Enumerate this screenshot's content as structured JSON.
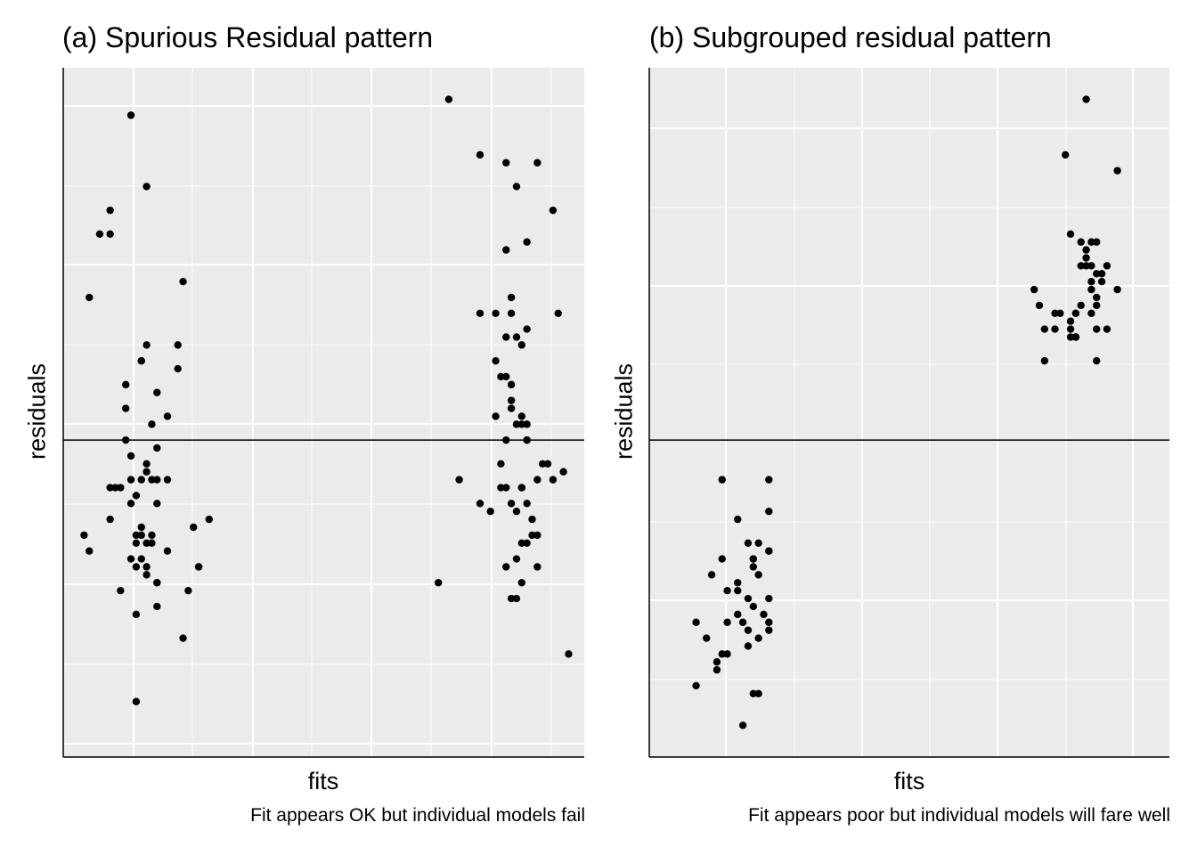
{
  "chart_data": [
    {
      "type": "scatter",
      "title": "(a) Spurious Residual pattern",
      "xlabel": "fits",
      "ylabel": "residuals",
      "caption": "Fit appears OK but individual models fail",
      "xlim": [
        0.0,
        10.0
      ],
      "ylim": [
        -4.0,
        4.7
      ],
      "grid": true,
      "hline": 0,
      "background": "#ebebeb",
      "point_color": "#000000",
      "series": [
        {
          "x": [
            1.3,
            0.5,
            0.9,
            1.8,
            0.9,
            2.3,
            1.6,
            1.6,
            0.7,
            1.5,
            2.2,
            2.2,
            1.2,
            1.5,
            1.2,
            1.8,
            1.3,
            1.6,
            2.0,
            1.7,
            1.2,
            1.0,
            0.9,
            1.8,
            1.7,
            2.0,
            1.5,
            1.3,
            1.1,
            1.4,
            1.6,
            1.8,
            1.7,
            1.5,
            1.7,
            1.5,
            1.6,
            1.4,
            2.5,
            2.6,
            1.6,
            2.0,
            1.5,
            1.4,
            0.9,
            1.6,
            1.3,
            1.8,
            1.8,
            2.3,
            2.6,
            1.4,
            1.8,
            2.4,
            0.4,
            0.5,
            1.1,
            1.4,
            1.3,
            1.4,
            2.8
          ],
          "y": [
            4.1,
            1.8,
            2.9,
            0.6,
            2.6,
            2.0,
            3.2,
            1.2,
            2.6,
            1.0,
            1.2,
            0.9,
            0.7,
            1.0,
            0.4,
            -0.1,
            -0.8,
            -0.3,
            0.3,
            0.2,
            0.0,
            -0.6,
            -0.6,
            -0.5,
            -0.5,
            -0.5,
            -0.5,
            -0.5,
            -0.6,
            -0.7,
            -0.4,
            -0.8,
            -1.2,
            -1.1,
            -1.3,
            -1.2,
            -1.3,
            -1.3,
            -1.1,
            -1.6,
            -1.6,
            -1.4,
            -1.5,
            -1.6,
            -1.0,
            -1.7,
            -1.5,
            -1.8,
            -1.8,
            -2.5,
            -1.6,
            -1.2,
            -2.1,
            -1.9,
            -1.2,
            -1.4,
            -1.9,
            -3.3,
            -0.2,
            -2.2,
            -1.0
          ]
        },
        {
          "x": [
            7.4,
            8.0,
            8.5,
            8.7,
            8.5,
            8.9,
            8.6,
            8.3,
            8.0,
            8.6,
            9.5,
            8.9,
            8.5,
            8.7,
            8.8,
            8.5,
            8.6,
            8.6,
            8.4,
            8.3,
            8.6,
            8.3,
            8.8,
            8.5,
            8.9,
            8.7,
            8.8,
            8.9,
            8.9,
            9.2,
            9.6,
            9.3,
            9.1,
            9.4,
            8.8,
            8.6,
            8.7,
            9.0,
            8.7,
            9.1,
            8.5,
            8.8,
            8.9,
            7.6,
            8.5,
            7.2,
            8.7,
            8.6,
            9.1,
            8.4,
            8.8,
            9.0,
            9.7,
            9.4,
            9.1,
            8.4,
            8.0,
            8.9,
            8.8,
            8.2
          ],
          "y": [
            4.3,
            3.6,
            3.5,
            3.2,
            2.4,
            2.5,
            1.8,
            1.6,
            1.6,
            1.6,
            1.6,
            1.4,
            1.3,
            1.3,
            1.2,
            0.8,
            0.7,
            0.5,
            0.8,
            1.0,
            0.4,
            0.3,
            0.3,
            0.0,
            0.2,
            0.2,
            0.2,
            0.0,
            0.0,
            -0.3,
            -0.4,
            -0.3,
            -0.5,
            -0.5,
            -0.6,
            -0.8,
            -0.9,
            -1.2,
            -1.5,
            -1.6,
            -1.6,
            -1.3,
            -1.3,
            -0.5,
            -0.6,
            -1.8,
            -2.0,
            -2.0,
            -1.2,
            -0.3,
            -0.6,
            -1.0,
            -2.7,
            2.9,
            3.5,
            -0.6,
            -0.8,
            -0.8,
            -1.8,
            -0.9
          ]
        }
      ]
    },
    {
      "type": "scatter",
      "title": "(b) Subgrouped residual pattern",
      "xlabel": "fits",
      "ylabel": "residuals",
      "caption": "Fit appears poor but individual models will fare well",
      "xlim": [
        0.0,
        10.0
      ],
      "ylim": [
        -4.0,
        4.7
      ],
      "grid": true,
      "hline": 0,
      "background": "#ebebeb",
      "point_color": "#000000",
      "series": [
        {
          "x": [
            1.4,
            2.3,
            2.3,
            1.7,
            2.1,
            1.4,
            1.9,
            2.3,
            2.0,
            2.3,
            2.0,
            2.1,
            2.0,
            1.2,
            1.7,
            1.7,
            1.5,
            1.9,
            2.2,
            2.1,
            0.9,
            1.5,
            1.9,
            1.8,
            2.3,
            2.3,
            1.7,
            1.1,
            0.9,
            1.3,
            1.5,
            1.9,
            1.8,
            2.0,
            1.4,
            2.3,
            1.3,
            2.1,
            2.0
          ],
          "y": [
            -0.5,
            -0.5,
            -0.9,
            -1.0,
            -1.3,
            -1.5,
            -1.3,
            -1.4,
            -1.5,
            -1.4,
            -1.6,
            -1.7,
            -1.5,
            -1.7,
            -1.8,
            -1.9,
            -1.9,
            -2.0,
            -2.2,
            -2.5,
            -2.3,
            -2.3,
            -2.4,
            -2.3,
            -2.4,
            -2.0,
            -2.2,
            -2.5,
            -3.1,
            -2.9,
            -2.7,
            -2.6,
            -3.6,
            -3.2,
            -2.7,
            -2.3,
            -2.8,
            -3.2,
            -2.1
          ]
        },
        {
          "x": [
            8.4,
            8.0,
            9.0,
            8.1,
            8.5,
            8.6,
            8.3,
            8.4,
            8.4,
            8.5,
            8.4,
            8.3,
            8.6,
            8.7,
            8.8,
            8.7,
            8.5,
            8.5,
            9.0,
            8.3,
            8.2,
            8.1,
            8.6,
            7.4,
            7.5,
            7.6,
            7.8,
            7.9,
            8.1,
            8.2,
            7.8,
            8.2,
            8.8,
            8.2,
            8.1,
            8.6,
            8.6,
            8.5,
            7.6,
            8.6
          ],
          "y": [
            4.3,
            3.6,
            3.4,
            2.6,
            2.5,
            2.5,
            2.5,
            2.4,
            2.3,
            2.2,
            2.2,
            2.2,
            2.1,
            2.1,
            2.2,
            2.0,
            2.0,
            1.9,
            1.9,
            1.7,
            1.6,
            1.5,
            1.8,
            1.9,
            1.7,
            1.4,
            1.6,
            1.6,
            1.4,
            1.6,
            1.4,
            1.3,
            1.4,
            1.3,
            1.3,
            1.7,
            1.4,
            1.6,
            1.0,
            1.0
          ]
        }
      ]
    }
  ]
}
